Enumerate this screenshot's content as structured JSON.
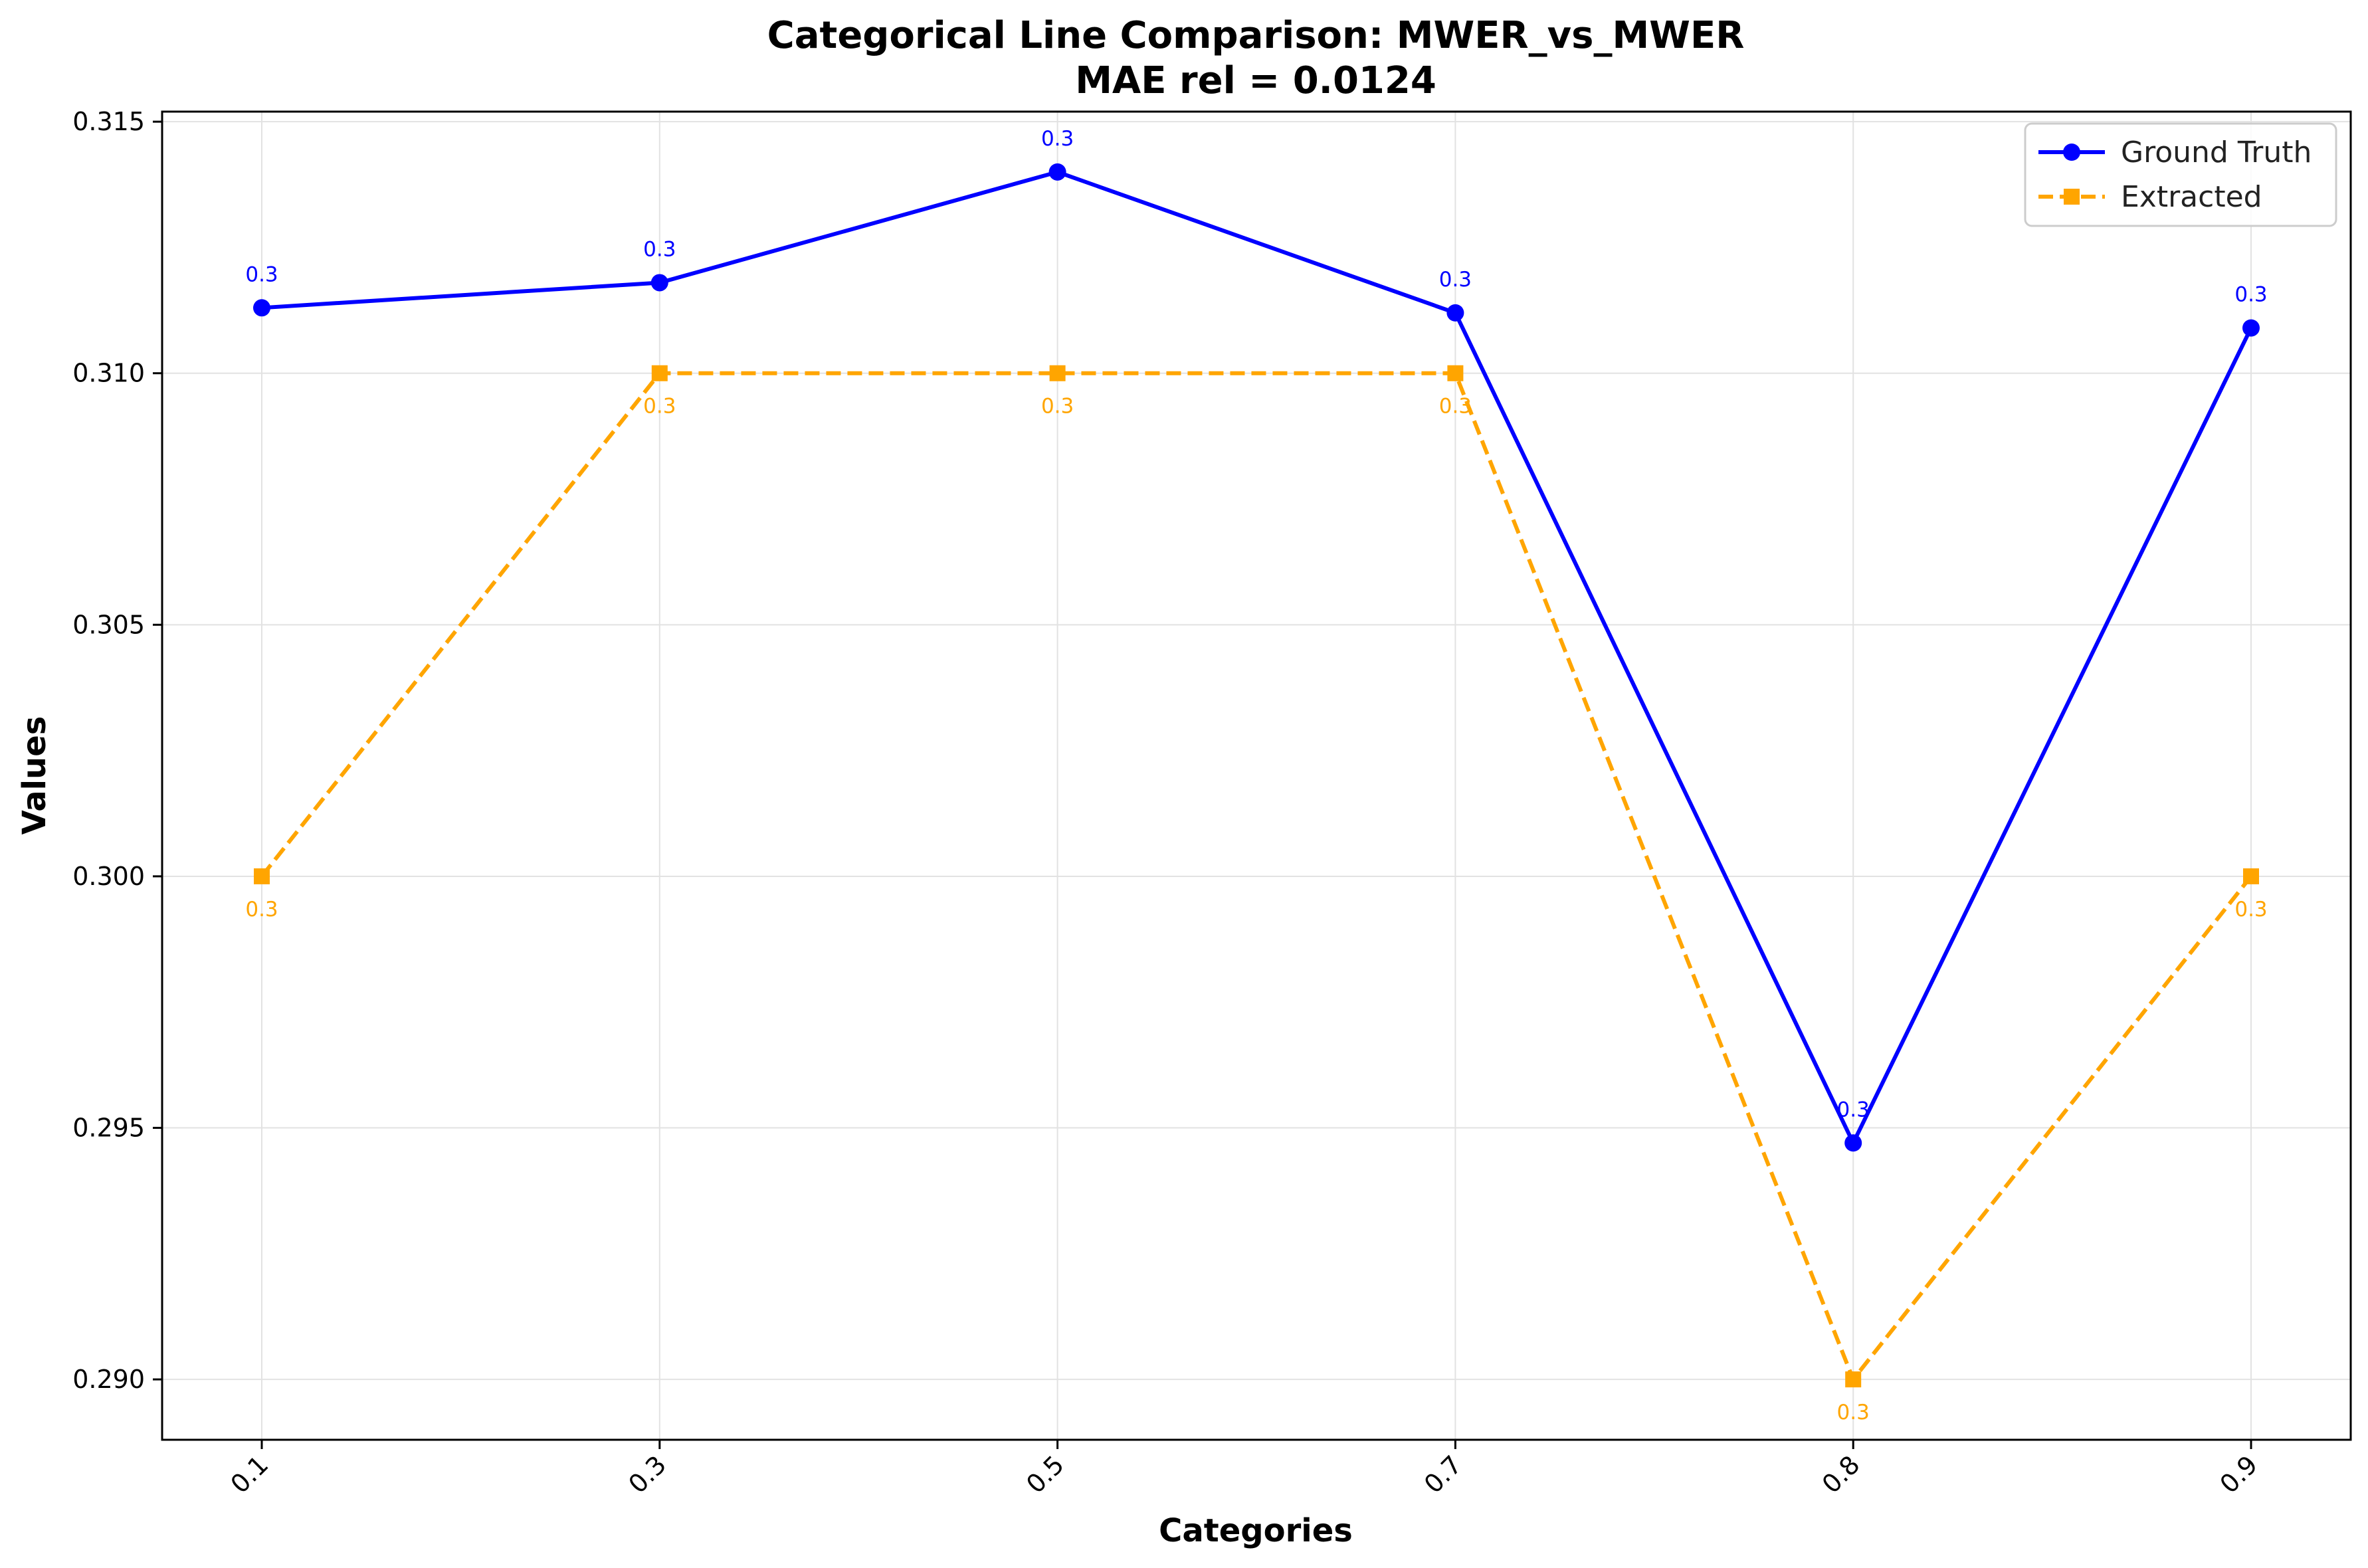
{
  "chart_data": {
    "type": "line",
    "title": "Categorical Line Comparison: MWER_vs_MWER",
    "subtitle": "MAE rel = 0.0124",
    "xlabel": "Categories",
    "ylabel": "Values",
    "categories": [
      "0.1",
      "0.3",
      "0.5",
      "0.7",
      "0.8",
      "0.9"
    ],
    "ylim": [
      0.2888,
      0.3152
    ],
    "yticks": [
      "0.290",
      "0.295",
      "0.300",
      "0.305",
      "0.310",
      "0.315"
    ],
    "grid": true,
    "legend_position": "top-right",
    "series": [
      {
        "name": "Ground Truth",
        "values": [
          0.3113,
          0.3118,
          0.314,
          0.3112,
          0.2947,
          0.3109
        ],
        "labels": [
          "0.3",
          "0.3",
          "0.3",
          "0.3",
          "0.3",
          "0.3"
        ],
        "color": "#0000ff",
        "marker": "circle",
        "line_style": "solid"
      },
      {
        "name": "Extracted",
        "values": [
          0.3,
          0.31,
          0.31,
          0.31,
          0.29,
          0.3
        ],
        "labels": [
          "0.3",
          "0.3",
          "0.3",
          "0.3",
          "0.3",
          "0.3"
        ],
        "color": "#ffa500",
        "marker": "square",
        "line_style": "dashed"
      }
    ]
  }
}
